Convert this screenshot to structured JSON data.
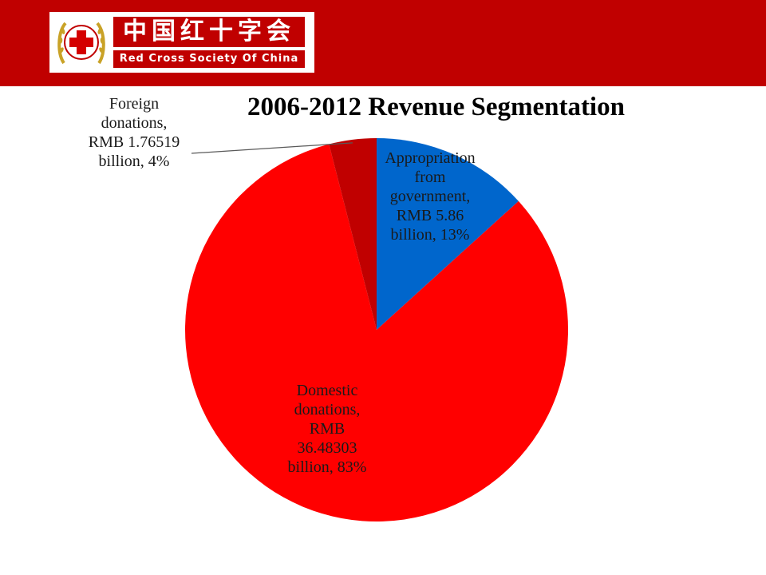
{
  "header": {
    "org_name_cn": "中国红十字会",
    "org_name_en": "Red Cross Society Of China"
  },
  "colors": {
    "banner": "#c00000",
    "government": "#0066cc",
    "domestic": "#ff0000",
    "foreign": "#c00000"
  },
  "chart_data": {
    "type": "pie",
    "title": "2006-2012 Revenue Segmentation",
    "categories": [
      "Appropriation from government",
      "Domestic donations",
      "Foreign donations"
    ],
    "values": [
      5.86,
      36.48303,
      1.76519
    ],
    "unit": "RMB billion",
    "percentages": [
      13,
      83,
      4
    ],
    "data_labels": [
      [
        "Appropriation",
        "from",
        "government,",
        "RMB 5.86",
        "billion, 13%"
      ],
      [
        "Domestic",
        "donations,",
        "RMB",
        "36.48303",
        "billion, 83%"
      ],
      [
        "Foreign",
        "donations,",
        "RMB 1.76519",
        "billion, 4%"
      ]
    ],
    "legend": "none"
  }
}
